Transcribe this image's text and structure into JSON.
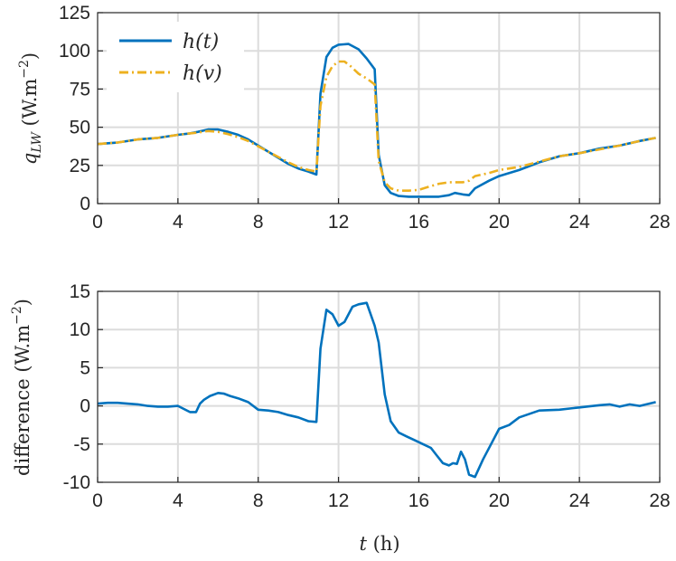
{
  "chart_data": [
    {
      "type": "line",
      "ylabel": "q_LW (W.m^-2)",
      "xlim": [
        0,
        28
      ],
      "ylim": [
        0,
        125
      ],
      "xticks": [
        0,
        4,
        8,
        12,
        16,
        20,
        24,
        28
      ],
      "yticks": [
        0,
        25,
        50,
        75,
        100,
        125
      ],
      "grid": true,
      "legend": "top-left",
      "series": [
        {
          "name": "h(t)",
          "color": "#0072BD",
          "style": "solid",
          "x": [
            0,
            1,
            2,
            3,
            4,
            4.6,
            5,
            5.5,
            6,
            6.5,
            7,
            7.5,
            8,
            8.5,
            9,
            9.5,
            10,
            10.5,
            10.9,
            11.1,
            11.4,
            11.7,
            12,
            12.5,
            13,
            13.4,
            13.8,
            14,
            14.3,
            14.6,
            15,
            15.5,
            16,
            16.5,
            17,
            17.5,
            17.8,
            18.2,
            18.5,
            18.8,
            19.5,
            20,
            21,
            22,
            23,
            24,
            25,
            26,
            27,
            27.8
          ],
          "y": [
            39,
            40,
            42,
            43,
            45,
            46,
            47,
            48.5,
            48.5,
            47,
            45,
            42,
            38,
            34,
            30,
            26,
            23,
            21,
            19,
            72,
            96,
            102,
            104,
            104.5,
            101,
            95,
            88,
            32,
            12,
            7,
            5,
            4.5,
            4.5,
            4.5,
            4.5,
            5.5,
            7,
            6,
            5.5,
            10,
            15,
            18,
            22,
            27,
            31,
            33,
            36,
            38,
            41,
            43
          ]
        },
        {
          "name": "h(v)",
          "color": "#EDB120",
          "style": "dashdot",
          "x": [
            0,
            1,
            2,
            3,
            4,
            4.6,
            5,
            5.5,
            6,
            6.5,
            7,
            7.5,
            8,
            8.5,
            9,
            9.5,
            10,
            10.5,
            10.9,
            11.1,
            11.4,
            11.7,
            12,
            12.3,
            12.6,
            13,
            13.4,
            13.8,
            14,
            14.3,
            14.6,
            15,
            15.5,
            16,
            16.5,
            17,
            17.5,
            17.8,
            18.2,
            18.5,
            18.8,
            19.5,
            20,
            21,
            22,
            23,
            24,
            25,
            26,
            27,
            27.8
          ],
          "y": [
            39,
            40,
            42,
            43,
            45,
            46,
            46.5,
            47.5,
            47,
            45.5,
            43.5,
            41,
            37.5,
            34,
            30.5,
            27,
            24,
            22,
            21,
            64,
            83,
            90,
            93,
            93,
            90,
            85,
            82,
            78,
            28,
            14,
            10,
            8.5,
            8.5,
            9,
            11,
            13,
            14,
            14,
            14,
            15,
            18,
            20,
            22,
            24,
            27.5,
            31,
            33,
            35.5,
            38,
            41,
            43
          ]
        }
      ],
      "legend_labels": [
        "h(t)",
        "h(v)"
      ]
    },
    {
      "type": "line",
      "xlabel": "t (h)",
      "ylabel": "difference (W.m^-2)",
      "xlim": [
        0,
        28
      ],
      "ylim": [
        -10,
        15
      ],
      "xticks": [
        0,
        4,
        8,
        12,
        16,
        20,
        24,
        28
      ],
      "yticks": [
        -10,
        -5,
        0,
        5,
        10,
        15
      ],
      "grid": true,
      "series": [
        {
          "color": "#0072BD",
          "style": "solid",
          "x": [
            0,
            0.5,
            1,
            1.5,
            2,
            2.5,
            3,
            3.5,
            4,
            4.3,
            4.6,
            4.9,
            5.1,
            5.3,
            5.6,
            6,
            6.3,
            6.6,
            7,
            7.5,
            8,
            8.5,
            9,
            9.5,
            10,
            10.5,
            10.9,
            11.1,
            11.4,
            11.7,
            12,
            12.3,
            12.7,
            13,
            13.4,
            13.8,
            14,
            14.3,
            14.6,
            15,
            15.4,
            15.8,
            16.2,
            16.6,
            16.9,
            17.2,
            17.5,
            17.7,
            17.9,
            18.1,
            18.3,
            18.5,
            18.8,
            19.2,
            19.6,
            20,
            20.5,
            21,
            22,
            23,
            24,
            25,
            25.5,
            26,
            26.5,
            27,
            27.8
          ],
          "y": [
            0.3,
            0.4,
            0.4,
            0.3,
            0.2,
            0,
            -0.1,
            -0.1,
            0,
            -0.4,
            -0.8,
            -0.8,
            0.3,
            0.8,
            1.3,
            1.7,
            1.6,
            1.3,
            1,
            0.5,
            -0.5,
            -0.6,
            -0.8,
            -1.2,
            -1.5,
            -2,
            -2.1,
            7.5,
            12.6,
            12,
            10.5,
            11,
            13,
            13.3,
            13.5,
            10.5,
            8.3,
            1.5,
            -2,
            -3.5,
            -4,
            -4.5,
            -5,
            -5.5,
            -6.5,
            -7.5,
            -7.8,
            -7.5,
            -7.6,
            -6,
            -7,
            -9,
            -9.3,
            -7,
            -5,
            -3,
            -2.5,
            -1.5,
            -0.6,
            -0.5,
            -0.2,
            0.1,
            0.2,
            -0.1,
            0.2,
            0,
            0.5
          ]
        }
      ]
    }
  ]
}
